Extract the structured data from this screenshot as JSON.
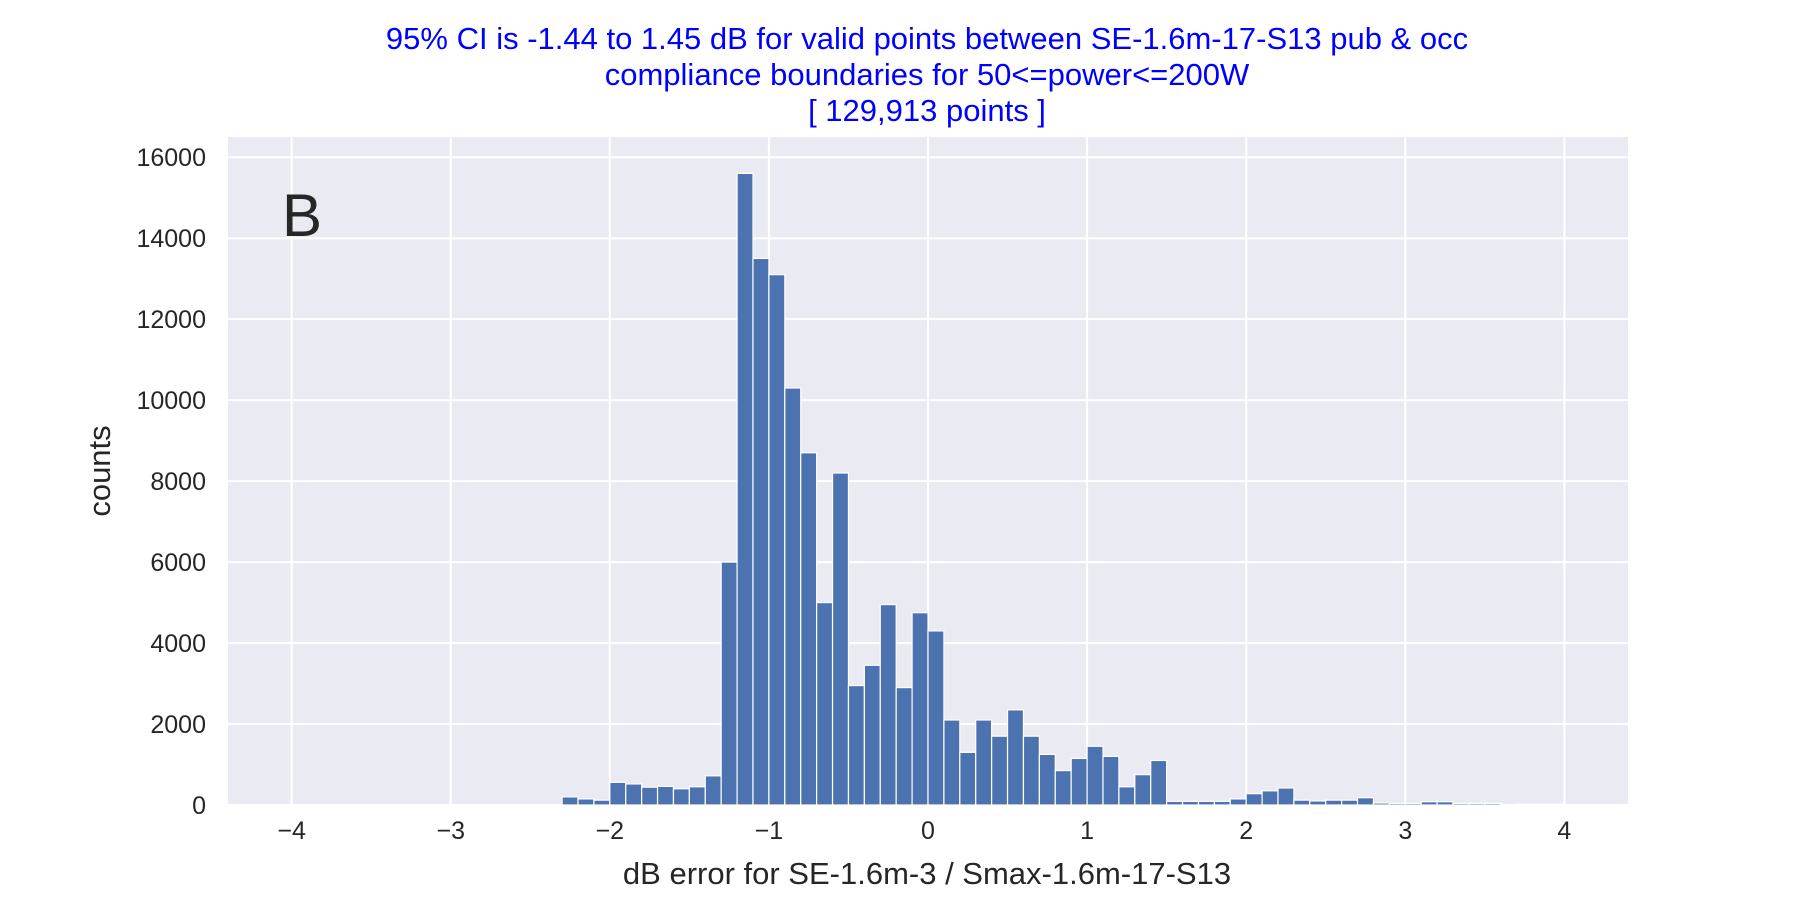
{
  "chart_data": {
    "type": "bar",
    "title_lines": [
      "95% CI is -1.44 to 1.45 dB for valid points between SE-1.6m-17-S13 pub & occ",
      "compliance boundaries for 50<=power<=200W",
      "[ 129,913 points ]"
    ],
    "xlabel": "dB error for SE-1.6m-3 / Smax-1.6m-17-S13",
    "ylabel": "counts",
    "panel_label": "B",
    "xlim": [
      -4.4,
      4.4
    ],
    "ylim": [
      0,
      16500
    ],
    "xticks": [
      -4,
      -3,
      -2,
      -1,
      0,
      1,
      2,
      3,
      4
    ],
    "xtick_labels": [
      "−4",
      "−3",
      "−2",
      "−1",
      "0",
      "1",
      "2",
      "3",
      "4"
    ],
    "yticks": [
      0,
      2000,
      4000,
      6000,
      8000,
      10000,
      12000,
      14000,
      16000
    ],
    "ytick_labels": [
      "0",
      "2000",
      "4000",
      "6000",
      "8000",
      "10000",
      "12000",
      "14000",
      "16000"
    ],
    "grid": true,
    "bar_color": "#4c72b0",
    "bin_width": 0.1,
    "bin_starts": [
      -2.3,
      -2.2,
      -2.1,
      -2.0,
      -1.9,
      -1.8,
      -1.7,
      -1.6,
      -1.5,
      -1.4,
      -1.3,
      -1.2,
      -1.1,
      -1.0,
      -0.9,
      -0.8,
      -0.7,
      -0.6,
      -0.5,
      -0.4,
      -0.3,
      -0.2,
      -0.1,
      0.0,
      0.1,
      0.2,
      0.3,
      0.4,
      0.5,
      0.6,
      0.7,
      0.8,
      0.9,
      1.0,
      1.1,
      1.2,
      1.3,
      1.4,
      1.5,
      1.6,
      1.7,
      1.8,
      1.9,
      2.0,
      2.1,
      2.2,
      2.3,
      2.4,
      2.5,
      2.6,
      2.7,
      2.8,
      2.9,
      3.0,
      3.1,
      3.2,
      3.3,
      3.4,
      3.5,
      3.6,
      3.7,
      3.8,
      3.9
    ],
    "counts": [
      200,
      150,
      120,
      560,
      520,
      440,
      460,
      400,
      450,
      720,
      6000,
      15600,
      13500,
      13100,
      10300,
      8700,
      5000,
      8200,
      2950,
      3450,
      4950,
      2900,
      4750,
      4300,
      2100,
      1300,
      2100,
      1700,
      2350,
      1700,
      1250,
      850,
      1150,
      1450,
      1200,
      450,
      750,
      1100,
      90,
      90,
      90,
      90,
      150,
      280,
      350,
      420,
      120,
      100,
      120,
      120,
      180,
      50,
      40,
      40,
      80,
      80,
      40,
      40,
      40,
      10,
      20,
      20,
      20
    ]
  }
}
